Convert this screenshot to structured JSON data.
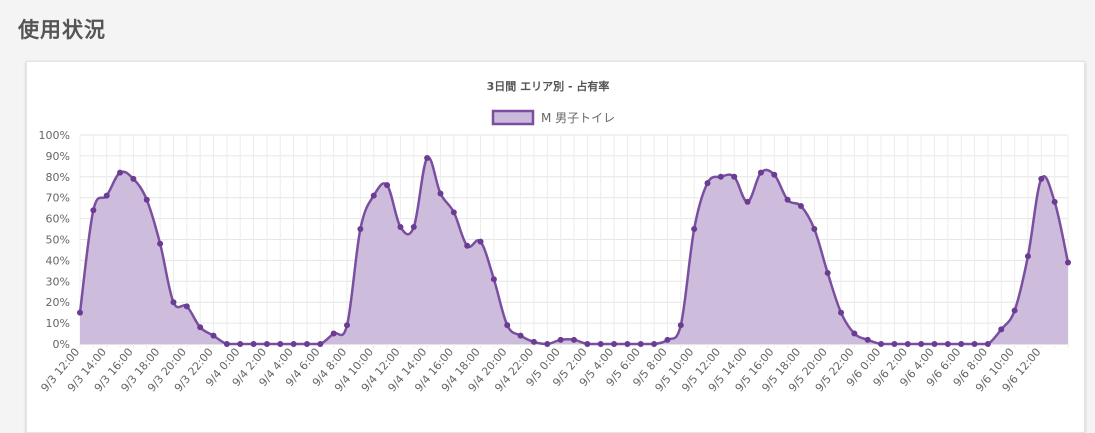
{
  "page": {
    "title": "使用状況"
  },
  "chart_data": {
    "type": "area",
    "title": "3日間 エリア別 - 占有率",
    "legend_position": "top",
    "grid": true,
    "ylim": [
      0,
      100
    ],
    "y_ticks": [
      "0%",
      "10%",
      "20%",
      "30%",
      "40%",
      "50%",
      "60%",
      "70%",
      "80%",
      "90%",
      "100%"
    ],
    "x_tick_labels": [
      "9/3 12:00",
      "9/3 14:00",
      "9/3 16:00",
      "9/3 18:00",
      "9/3 20:00",
      "9/3 22:00",
      "9/4 0:00",
      "9/4 2:00",
      "9/4 4:00",
      "9/4 6:00",
      "9/4 8:00",
      "9/4 10:00",
      "9/4 12:00",
      "9/4 14:00",
      "9/4 16:00",
      "9/4 18:00",
      "9/4 20:00",
      "9/4 22:00",
      "9/5 0:00",
      "9/5 2:00",
      "9/5 4:00",
      "9/5 6:00",
      "9/5 8:00",
      "9/5 10:00",
      "9/5 12:00",
      "9/5 14:00",
      "9/5 16:00",
      "9/5 18:00",
      "9/5 20:00",
      "9/5 22:00",
      "9/6 0:00",
      "9/6 2:00",
      "9/6 4:00",
      "9/6 6:00",
      "9/6 8:00",
      "9/6 10:00",
      "9/6 12:00"
    ],
    "series": [
      {
        "name": "M 男子トイレ",
        "color": "#7b4fa0",
        "fill": "#cbb8da",
        "values": [
          15,
          64,
          71,
          82,
          79,
          69,
          48,
          20,
          18,
          8,
          4,
          0,
          0,
          0,
          0,
          0,
          0,
          0,
          0,
          5,
          9,
          55,
          71,
          76,
          56,
          56,
          89,
          72,
          63,
          47,
          49,
          31,
          9,
          4,
          1,
          0,
          2,
          2,
          0,
          0,
          0,
          0,
          0,
          0,
          2,
          9,
          55,
          77,
          80,
          80,
          68,
          82,
          81,
          69,
          66,
          55,
          34,
          15,
          5,
          2,
          0,
          0,
          0,
          0,
          0,
          0,
          0,
          0,
          0,
          7,
          16,
          42,
          79,
          68,
          39
        ]
      }
    ]
  }
}
